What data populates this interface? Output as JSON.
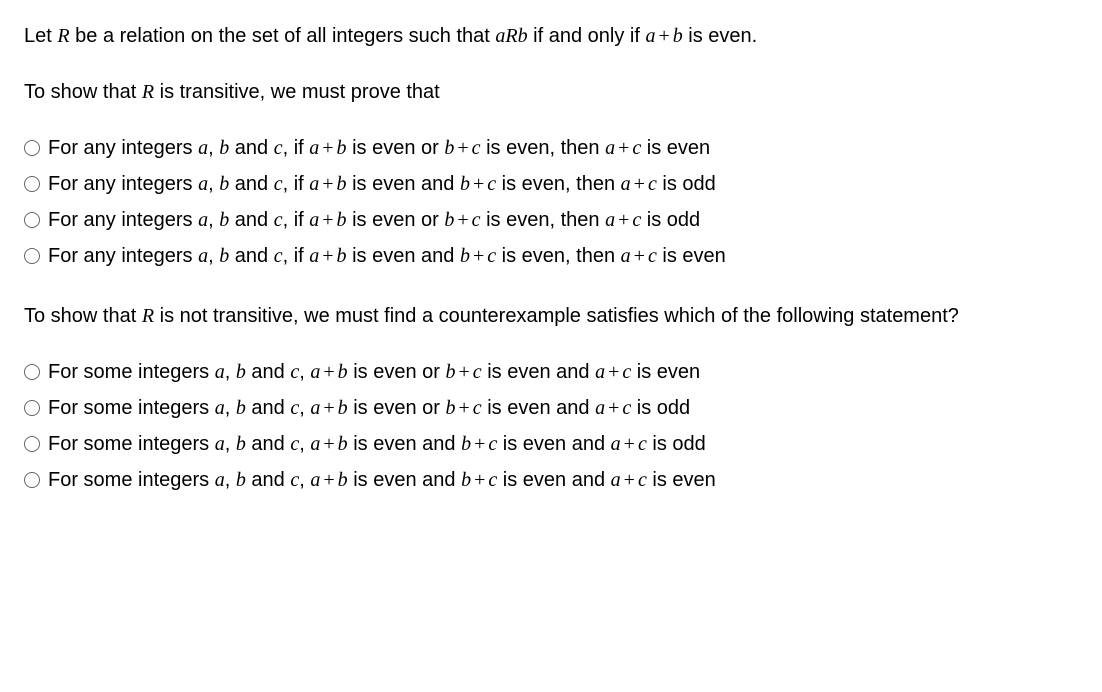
{
  "intro": {
    "prefix": "Let ",
    "R": "R",
    "mid1": " be a relation on the set of all integers such that ",
    "aRb": "aRb",
    "mid2": " if and only if ",
    "expr_a": "a",
    "plus": "+",
    "expr_b": "b",
    "suffix": " is even."
  },
  "q1": {
    "prefix": "To show that ",
    "R": "R",
    "suffix": " is transitive, we must prove that"
  },
  "q1_options": [
    {
      "prefix": "For any integers ",
      "a": "a",
      "c1": ", ",
      "b": "b",
      "and": " and ",
      "c": "c",
      "c2": ", if ",
      "e1a": "a",
      "p1": "+",
      "e1b": "b",
      "m1": " is even or ",
      "e2a": "b",
      "p2": "+",
      "e2b": "c",
      "m2": " is even, then ",
      "e3a": "a",
      "p3": "+",
      "e3b": "c",
      "suffix": " is even"
    },
    {
      "prefix": "For any integers ",
      "a": "a",
      "c1": ", ",
      "b": "b",
      "and": " and ",
      "c": "c",
      "c2": ", if ",
      "e1a": "a",
      "p1": "+",
      "e1b": "b",
      "m1": " is even and ",
      "e2a": "b",
      "p2": "+",
      "e2b": "c",
      "m2": " is even, then ",
      "e3a": "a",
      "p3": "+",
      "e3b": "c",
      "suffix": " is odd"
    },
    {
      "prefix": "For any integers ",
      "a": "a",
      "c1": ", ",
      "b": "b",
      "and": " and ",
      "c": "c",
      "c2": ", if ",
      "e1a": "a",
      "p1": "+",
      "e1b": "b",
      "m1": " is even or ",
      "e2a": "b",
      "p2": "+",
      "e2b": "c",
      "m2": " is even, then ",
      "e3a": "a",
      "p3": "+",
      "e3b": "c",
      "suffix": " is odd"
    },
    {
      "prefix": "For any integers ",
      "a": "a",
      "c1": ", ",
      "b": "b",
      "and": " and ",
      "c": "c",
      "c2": ", if ",
      "e1a": "a",
      "p1": "+",
      "e1b": "b",
      "m1": " is even and ",
      "e2a": "b",
      "p2": "+",
      "e2b": "c",
      "m2": " is even, then ",
      "e3a": "a",
      "p3": "+",
      "e3b": "c",
      "suffix": " is even"
    }
  ],
  "q2": {
    "prefix": "To show that ",
    "R": "R",
    "suffix": " is not transitive, we must find a counterexample satisfies which of the following statement?"
  },
  "q2_options": [
    {
      "prefix": "For some integers ",
      "a": "a",
      "c1": ", ",
      "b": "b",
      "and": " and ",
      "c": "c",
      "c2": ", ",
      "e1a": "a",
      "p1": "+",
      "e1b": "b",
      "m1": " is even or ",
      "e2a": "b",
      "p2": "+",
      "e2b": "c",
      "m2": " is even and ",
      "e3a": "a",
      "p3": "+",
      "e3b": "c",
      "suffix": " is even"
    },
    {
      "prefix": "For some integers ",
      "a": "a",
      "c1": ", ",
      "b": "b",
      "and": " and ",
      "c": "c",
      "c2": ", ",
      "e1a": "a",
      "p1": "+",
      "e1b": "b",
      "m1": " is even or ",
      "e2a": "b",
      "p2": "+",
      "e2b": "c",
      "m2": " is even and ",
      "e3a": "a",
      "p3": "+",
      "e3b": "c",
      "suffix": " is odd"
    },
    {
      "prefix": "For some integers ",
      "a": "a",
      "c1": ", ",
      "b": "b",
      "and": " and ",
      "c": "c",
      "c2": ", ",
      "e1a": "a",
      "p1": "+",
      "e1b": "b",
      "m1": " is even and ",
      "e2a": "b",
      "p2": "+",
      "e2b": "c",
      "m2": " is even and ",
      "e3a": "a",
      "p3": "+",
      "e3b": "c",
      "suffix": " is odd"
    },
    {
      "prefix": "For some integers ",
      "a": "a",
      "c1": ", ",
      "b": "b",
      "and": " and ",
      "c": "c",
      "c2": ", ",
      "e1a": "a",
      "p1": "+",
      "e1b": "b",
      "m1": " is even and ",
      "e2a": "b",
      "p2": "+",
      "e2b": "c",
      "m2": " is even and ",
      "e3a": "a",
      "p3": "+",
      "e3b": "c",
      "suffix": " is even"
    }
  ],
  "colors": {
    "text": "#000000",
    "background": "#ffffff",
    "radio_border": "#666666"
  },
  "font_sizes": {
    "body": 20
  }
}
